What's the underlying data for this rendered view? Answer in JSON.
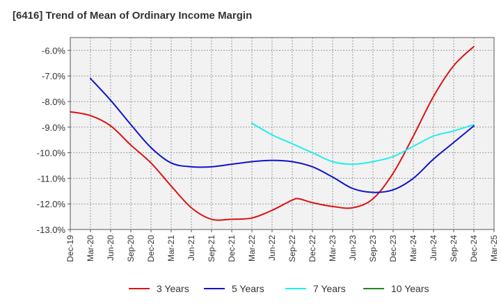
{
  "chart_data": {
    "type": "line",
    "title": "[6416]  Trend of Mean of Ordinary Income Margin",
    "xlabel": "",
    "ylabel": "",
    "x_tick_labels": [
      "Dec-19",
      "Mar-20",
      "Jun-20",
      "Sep-20",
      "Dec-20",
      "Mar-21",
      "Jun-21",
      "Sep-21",
      "Dec-21",
      "Mar-22",
      "Jun-22",
      "Sep-22",
      "Dec-22",
      "Mar-23",
      "Jun-23",
      "Sep-23",
      "Dec-23",
      "Mar-24",
      "Jun-24",
      "Sep-24",
      "Dec-24",
      "Mar-25"
    ],
    "y_tick_labels": [
      "-6.0%",
      "-7.0%",
      "-8.0%",
      "-9.0%",
      "-10.0%",
      "-11.0%",
      "-12.0%",
      "-13.0%"
    ],
    "y_ticks": [
      -6,
      -7,
      -8,
      -9,
      -10,
      -11,
      -12,
      -13
    ],
    "ylim": [
      -13,
      -5.5
    ],
    "grid": true,
    "legend_position": "bottom",
    "series": [
      {
        "name": "3 Years",
        "color": "#dd1111",
        "x": [
          "Dec-19",
          "Mar-20",
          "Jun-20",
          "Sep-20",
          "Dec-20",
          "Mar-21",
          "Jun-21",
          "Sep-21",
          "Dec-21",
          "Mar-22",
          "Jun-22",
          "Sep-22",
          "Oct-22",
          "Dec-22",
          "Mar-23",
          "Jun-23",
          "Sep-23",
          "Dec-23",
          "Mar-24",
          "Jun-24",
          "Sep-24",
          "Dec-24"
        ],
        "values": [
          -8.4,
          -8.55,
          -8.95,
          -9.7,
          -10.4,
          -11.3,
          -12.15,
          -12.6,
          -12.6,
          -12.55,
          -12.25,
          -11.85,
          -11.8,
          -11.95,
          -12.1,
          -12.15,
          -11.8,
          -10.8,
          -9.35,
          -7.8,
          -6.6,
          -5.85
        ]
      },
      {
        "name": "5 Years",
        "color": "#1111cc",
        "x": [
          "Mar-20",
          "Jun-20",
          "Sep-20",
          "Dec-20",
          "Mar-21",
          "Jun-21",
          "Sep-21",
          "Dec-21",
          "Mar-22",
          "Jun-22",
          "Sep-22",
          "Dec-22",
          "Mar-23",
          "Jun-23",
          "Sep-23",
          "Dec-23",
          "Mar-24",
          "Jun-24",
          "Sep-24",
          "Dec-24"
        ],
        "values": [
          -7.1,
          -7.95,
          -8.9,
          -9.8,
          -10.4,
          -10.55,
          -10.55,
          -10.45,
          -10.35,
          -10.3,
          -10.35,
          -10.55,
          -10.95,
          -11.4,
          -11.55,
          -11.45,
          -11.0,
          -10.25,
          -9.6,
          -8.95
        ]
      },
      {
        "name": "7 Years",
        "color": "#22eeee",
        "x": [
          "Mar-22",
          "Jun-22",
          "Sep-22",
          "Dec-22",
          "Mar-23",
          "Jun-23",
          "Sep-23",
          "Dec-23",
          "Mar-24",
          "Jun-24",
          "Sep-24",
          "Dec-24"
        ],
        "values": [
          -8.85,
          -9.3,
          -9.65,
          -10.0,
          -10.35,
          -10.45,
          -10.35,
          -10.15,
          -9.75,
          -9.35,
          -9.15,
          -8.9
        ]
      },
      {
        "name": "10 Years",
        "color": "#228822",
        "x": [],
        "values": []
      }
    ]
  }
}
